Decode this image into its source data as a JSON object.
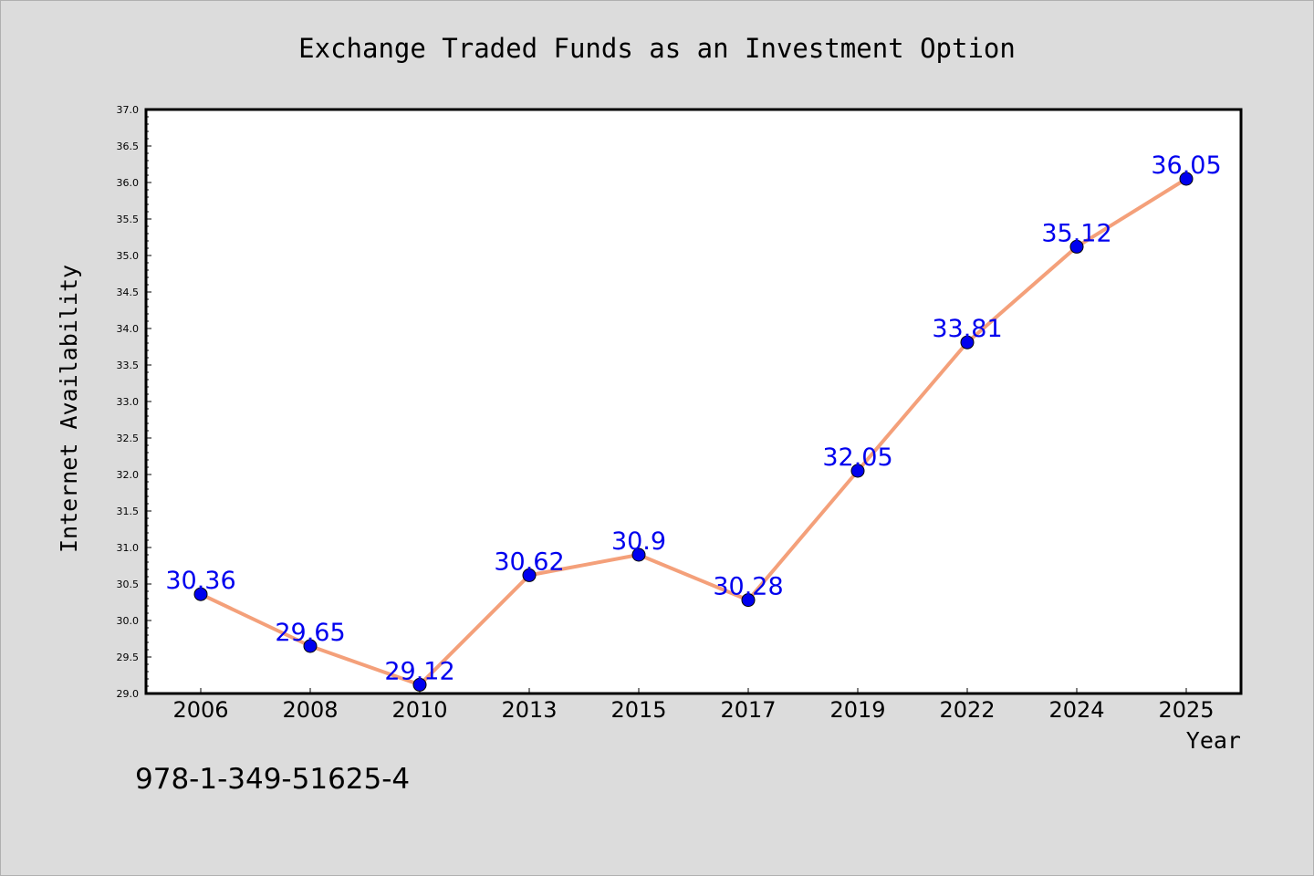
{
  "chart_data": {
    "type": "line",
    "title": "Exchange Traded Funds as an Investment Option",
    "xlabel": "Year",
    "ylabel": "Internet Availability",
    "categories": [
      "2006",
      "2008",
      "2010",
      "2013",
      "2015",
      "2017",
      "2019",
      "2022",
      "2024",
      "2025"
    ],
    "series": [
      {
        "values": [
          30.36,
          29.65,
          29.12,
          30.62,
          30.9,
          30.28,
          32.05,
          33.81,
          35.12,
          36.05
        ],
        "labels": [
          "30.36",
          "29.65",
          "29.12",
          "30.62",
          "30.9",
          "30.28",
          "32.05",
          "33.81",
          "35.12",
          "36.05"
        ]
      }
    ],
    "ylim": [
      29.0,
      37.0
    ],
    "yticks": [
      "29.0",
      "29.5",
      "30.0",
      "30.5",
      "31.0",
      "31.5",
      "32.0",
      "32.5",
      "33.0",
      "33.5",
      "34.0",
      "34.5",
      "35.0",
      "35.5",
      "36.0",
      "36.5",
      "37.0"
    ],
    "grid": false,
    "legend": "none",
    "colors": {
      "line": "#f4a07a",
      "marker": "#0000ee",
      "data_label": "#0000ee",
      "axes": "#000000",
      "plot_background": "#ffffff",
      "page_background": "#dcdcdc"
    }
  },
  "footer": {
    "isbn": "978-1-349-51625-4"
  }
}
